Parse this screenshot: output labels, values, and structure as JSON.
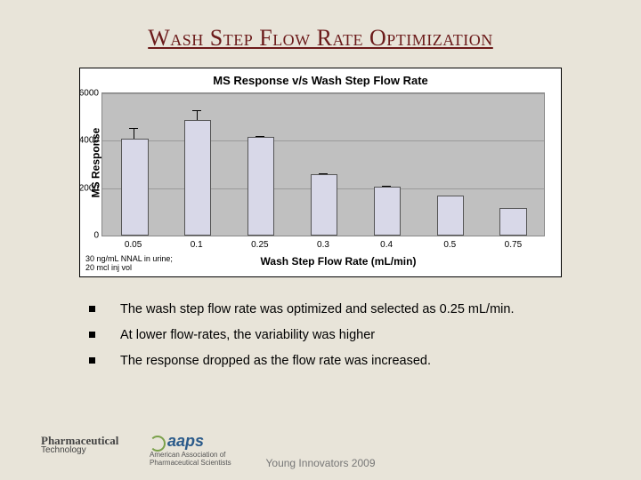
{
  "title": "Wash Step Flow Rate Optimization",
  "chart": {
    "type": "bar",
    "title": "MS Response v/s Wash Step Flow Rate",
    "ylabel": "MS Response",
    "xlabel": "Wash Step Flow Rate (mL/min)",
    "background_color": "#c0c0c0",
    "grid_color": "#9a9a9a",
    "bar_fill": "#d8d8e8",
    "bar_border": "#555555",
    "ylim": [
      0,
      6000
    ],
    "ytick_step": 2000,
    "yticks": [
      "0",
      "2000",
      "4000",
      "6000"
    ],
    "categories": [
      "0.05",
      "0.1",
      "0.25",
      "0.3",
      "0.4",
      "0.5",
      "0.75"
    ],
    "values": [
      4000,
      4800,
      4100,
      2500,
      2000,
      1600,
      1100
    ],
    "errors": [
      500,
      450,
      80,
      90,
      70,
      50,
      40
    ],
    "bar_width": 0.4,
    "title_fontsize": 13,
    "label_fontsize": 12,
    "tick_fontsize": 10,
    "note": "30 ng/mL NNAL in urine; 20 mcl inj vol"
  },
  "bullets": {
    "b1": "The wash step flow rate was optimized and selected as 0.25 mL/min.",
    "b2": "At lower flow-rates, the variability was higher",
    "b3": "The response dropped as the flow rate was  increased."
  },
  "footer": "Young Innovators 2009",
  "logo_left": {
    "line1": "Pharmaceutical",
    "line2": "Technology"
  },
  "logo_right": {
    "brand": "aaps",
    "sub1": "American Association of",
    "sub2": "Pharmaceutical Scientists"
  }
}
